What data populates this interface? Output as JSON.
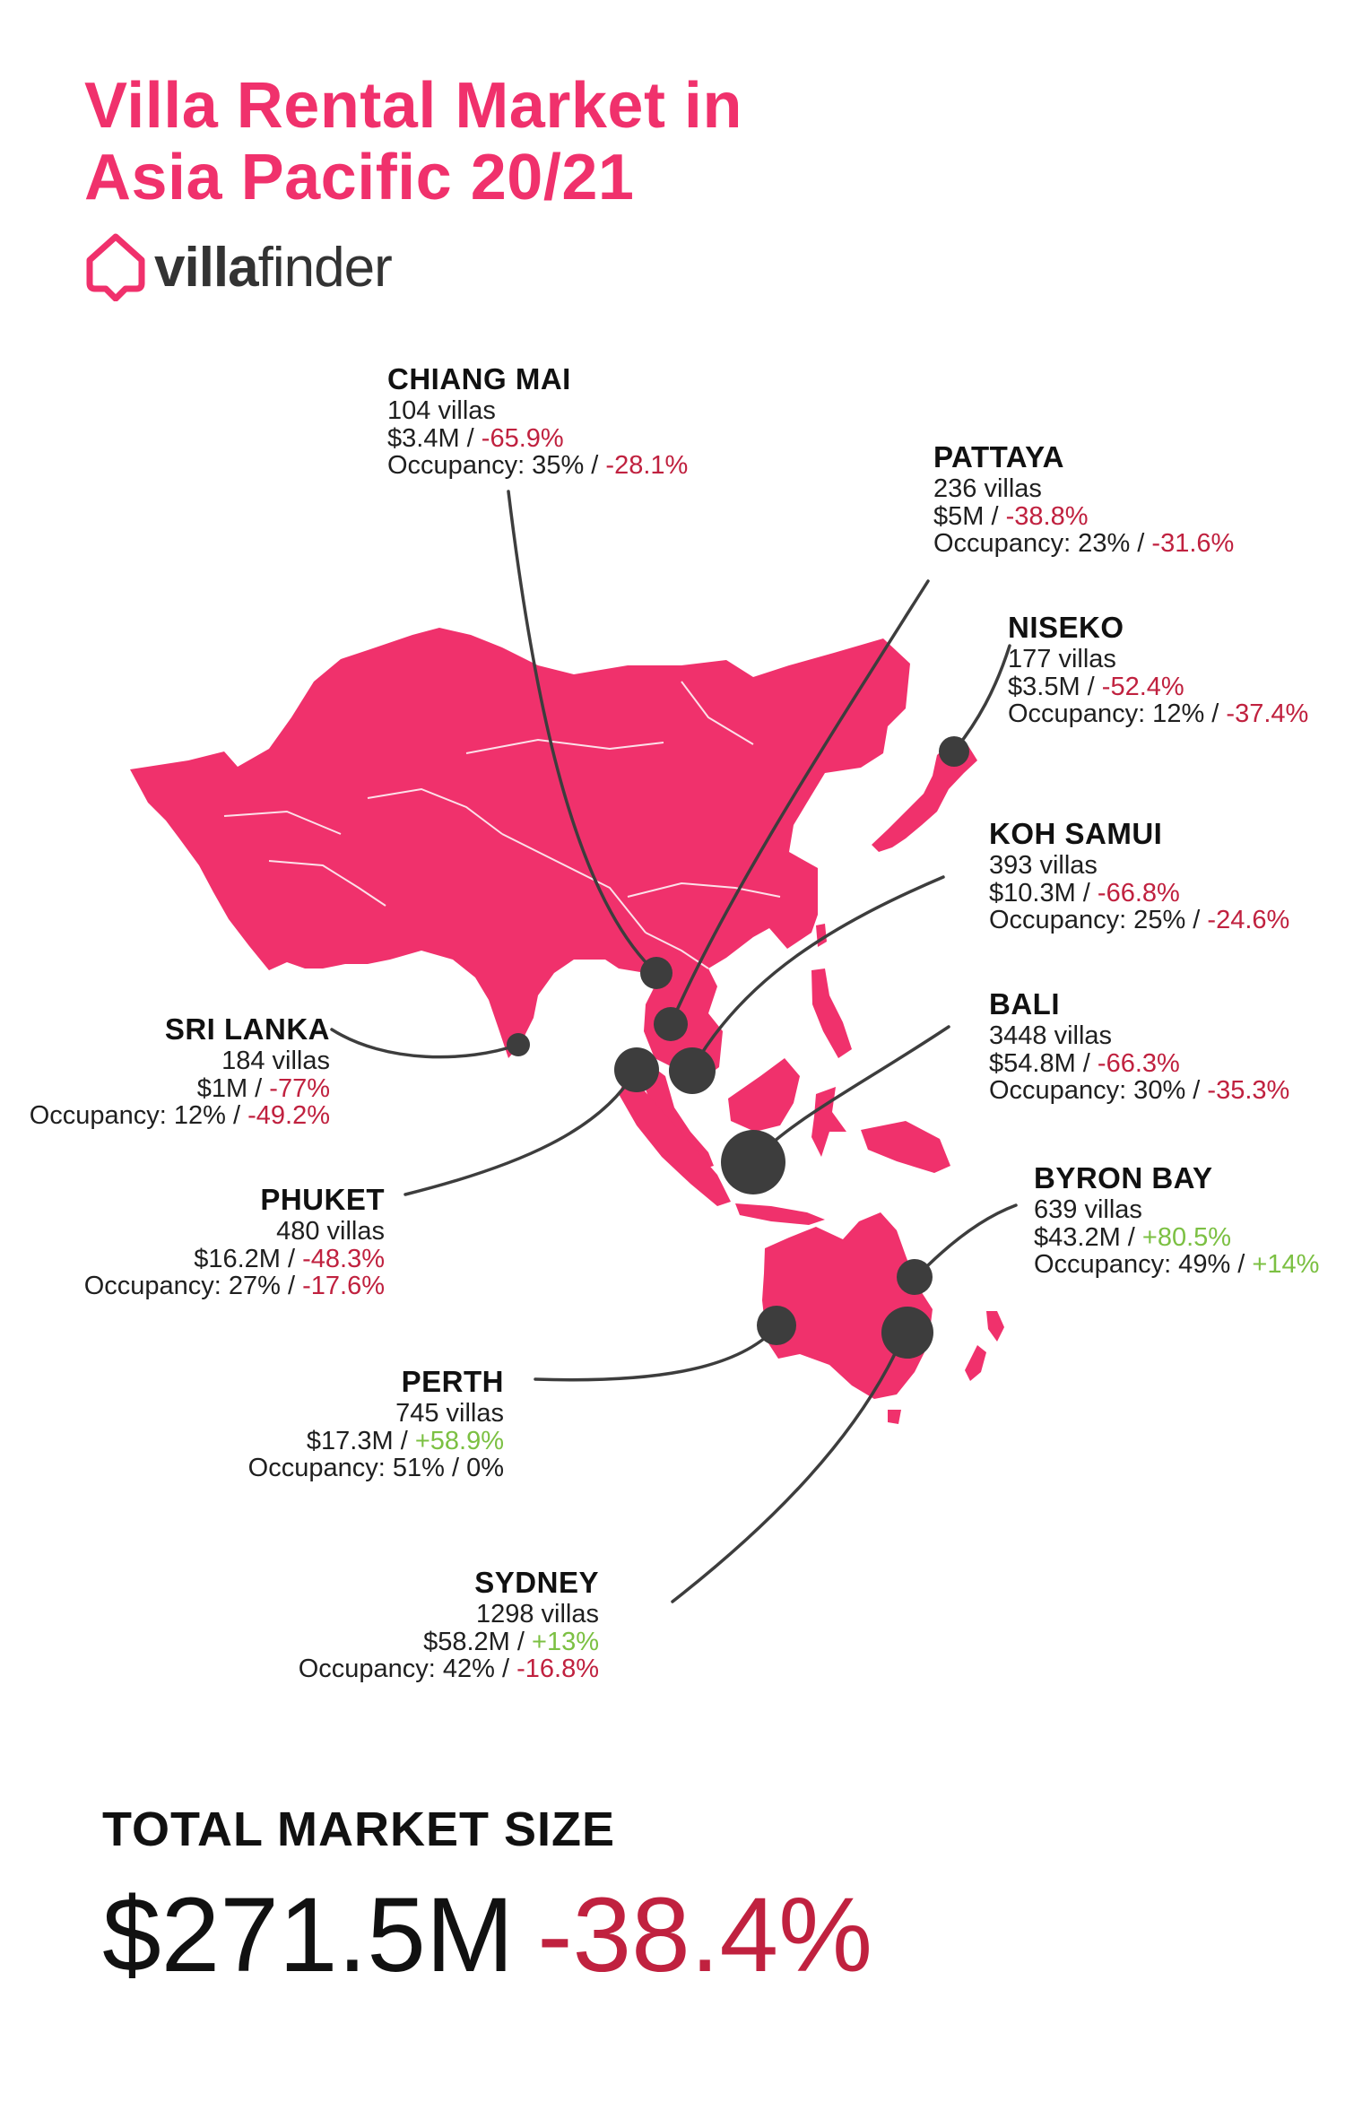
{
  "title": {
    "line1": "Villa Rental Market in",
    "line2": "Asia Pacific 20/21"
  },
  "brand": {
    "name_bold": "villa",
    "name_light": "finder",
    "icon": "house-pin-icon",
    "color": "#f0316c"
  },
  "colors": {
    "map_fill": "#f0316c",
    "marker": "#3d3d3d",
    "negative": "#c0213f",
    "positive": "#7cc043"
  },
  "locations": [
    {
      "id": "chiang-mai",
      "name": "CHIANG MAI",
      "villas": "104 villas",
      "revenue": "$3.4M",
      "revenue_change": "-65.9%",
      "revenue_trend": "neg",
      "occupancy": "Occupancy: 35%",
      "occupancy_change": "-28.1%",
      "occupancy_trend": "neg",
      "marker_size": 18
    },
    {
      "id": "pattaya",
      "name": "PATTAYA",
      "villas": "236 villas",
      "revenue": "$5M",
      "revenue_change": "-38.8%",
      "revenue_trend": "neg",
      "occupancy": "Occupancy: 23%",
      "occupancy_change": "-31.6%",
      "occupancy_trend": "neg",
      "marker_size": 19
    },
    {
      "id": "niseko",
      "name": "NISEKO",
      "villas": "177 villas",
      "revenue": "$3.5M",
      "revenue_change": "-52.4%",
      "revenue_trend": "neg",
      "occupancy": "Occupancy: 12%",
      "occupancy_change": "-37.4%",
      "occupancy_trend": "neg",
      "marker_size": 17
    },
    {
      "id": "koh-samui",
      "name": "KOH SAMUI",
      "villas": "393 villas",
      "revenue": "$10.3M",
      "revenue_change": "-66.8%",
      "revenue_trend": "neg",
      "occupancy": "Occupancy: 25%",
      "occupancy_change": "-24.6%",
      "occupancy_trend": "neg",
      "marker_size": 26
    },
    {
      "id": "bali",
      "name": "BALI",
      "villas": "3448 villas",
      "revenue": "$54.8M",
      "revenue_change": "-66.3%",
      "revenue_trend": "neg",
      "occupancy": "Occupancy: 30%",
      "occupancy_change": "-35.3%",
      "occupancy_trend": "neg",
      "marker_size": 36
    },
    {
      "id": "byron-bay",
      "name": "BYRON BAY",
      "villas": "639 villas",
      "revenue": "$43.2M",
      "revenue_change": "+80.5%",
      "revenue_trend": "pos",
      "occupancy": "Occupancy: 49%",
      "occupancy_change": "+14%",
      "occupancy_trend": "pos",
      "marker_size": 20
    },
    {
      "id": "sri-lanka",
      "name": "SRI LANKA",
      "villas": "184 villas",
      "revenue": "$1M",
      "revenue_change": "-77%",
      "revenue_trend": "neg",
      "occupancy": "Occupancy: 12%",
      "occupancy_change": "-49.2%",
      "occupancy_trend": "neg",
      "marker_size": 13
    },
    {
      "id": "phuket",
      "name": "PHUKET",
      "villas": "480 villas",
      "revenue": "$16.2M",
      "revenue_change": "-48.3%",
      "revenue_trend": "neg",
      "occupancy": "Occupancy: 27%",
      "occupancy_change": "-17.6%",
      "occupancy_trend": "neg",
      "marker_size": 25
    },
    {
      "id": "perth",
      "name": "PERTH",
      "villas": "745 villas",
      "revenue": "$17.3M",
      "revenue_change": "+58.9%",
      "revenue_trend": "pos",
      "occupancy": "Occupancy: 51%",
      "occupancy_change": "0%",
      "occupancy_trend": "zero",
      "marker_size": 22
    },
    {
      "id": "sydney",
      "name": "SYDNEY",
      "villas": "1298 villas",
      "revenue": "$58.2M",
      "revenue_change": "+13%",
      "revenue_trend": "pos",
      "occupancy": "Occupancy: 42%",
      "occupancy_change": "-16.8%",
      "occupancy_trend": "neg",
      "marker_size": 29
    }
  ],
  "total": {
    "label": "TOTAL MARKET SIZE",
    "value": "$271.5M",
    "change": "-38.4%"
  }
}
